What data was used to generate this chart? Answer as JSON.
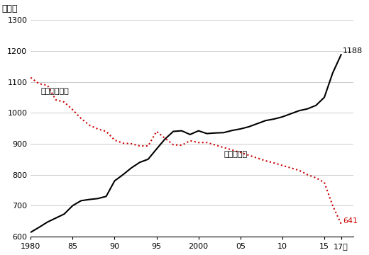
{
  "title_y": "万世帯",
  "ylim": [
    600,
    1300
  ],
  "yticks": [
    600,
    700,
    800,
    900,
    1000,
    1100,
    1200,
    1300
  ],
  "xticks": [
    1980,
    1985,
    1990,
    1995,
    2000,
    2005,
    2010,
    2015,
    2017
  ],
  "xtick_labels": [
    "1980",
    "85",
    "90",
    "95",
    "2000",
    "05",
    "10",
    "15",
    "17年"
  ],
  "label_shufu": "専業主婦世帯",
  "label_tomobataraki": "共働き世帯",
  "annotation_1188": "1188",
  "annotation_641": "641",
  "tomobataraki": {
    "years": [
      1980,
      1981,
      1982,
      1983,
      1984,
      1985,
      1986,
      1987,
      1988,
      1989,
      1990,
      1991,
      1992,
      1993,
      1994,
      1995,
      1996,
      1997,
      1998,
      1999,
      2000,
      2001,
      2002,
      2003,
      2004,
      2005,
      2006,
      2007,
      2008,
      2009,
      2010,
      2011,
      2012,
      2013,
      2014,
      2015,
      2016,
      2017
    ],
    "values": [
      614,
      630,
      647,
      660,
      673,
      700,
      716,
      720,
      723,
      730,
      780,
      800,
      822,
      840,
      850,
      883,
      915,
      940,
      942,
      930,
      942,
      933,
      935,
      936,
      943,
      948,
      955,
      965,
      975,
      980,
      987,
      997,
      1007,
      1013,
      1024,
      1050,
      1129,
      1188
    ]
  },
  "shufu": {
    "years": [
      1980,
      1981,
      1982,
      1983,
      1984,
      1985,
      1986,
      1987,
      1988,
      1989,
      1990,
      1991,
      1992,
      1993,
      1994,
      1995,
      1996,
      1997,
      1998,
      1999,
      2000,
      2001,
      2002,
      2003,
      2004,
      2005,
      2006,
      2007,
      2008,
      2009,
      2010,
      2011,
      2012,
      2013,
      2014,
      2015,
      2016,
      2017
    ],
    "values": [
      1114,
      1094,
      1089,
      1042,
      1035,
      1010,
      982,
      960,
      948,
      940,
      912,
      902,
      900,
      893,
      893,
      940,
      918,
      897,
      895,
      910,
      904,
      904,
      896,
      888,
      880,
      872,
      863,
      854,
      845,
      838,
      830,
      822,
      814,
      800,
      790,
      775,
      700,
      641
    ]
  },
  "line_tomobataraki_color": "#000000",
  "line_shufu_color": "#cc0000",
  "bg_color": "#ffffff",
  "grid_color": "#cccccc",
  "xlim": [
    1980,
    2018.5
  ]
}
